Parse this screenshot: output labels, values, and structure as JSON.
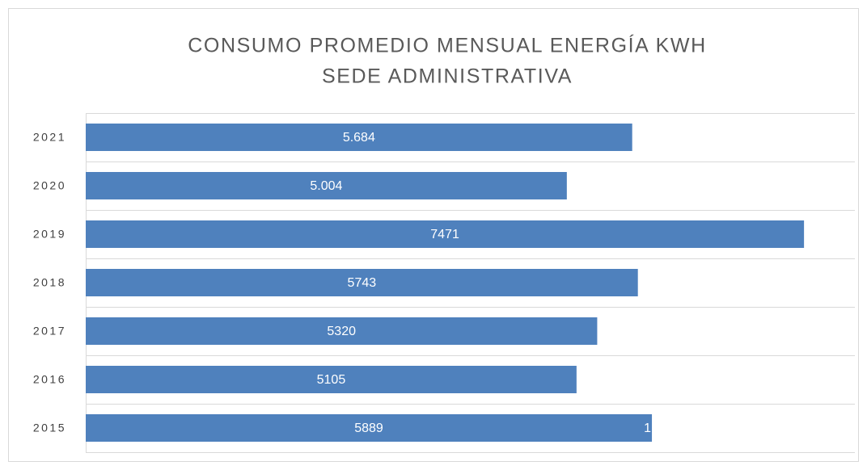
{
  "chart_data": {
    "type": "bar",
    "orientation": "horizontal",
    "title": [
      "CONSUMO PROMEDIO MENSUAL ENERGÍA KWH",
      "SEDE ADMINISTRATIVA"
    ],
    "categories": [
      "2021",
      "2020",
      "2019",
      "2018",
      "2017",
      "2016",
      "2015"
    ],
    "values": [
      5684,
      5004,
      7471,
      5743,
      5320,
      5105,
      5889
    ],
    "value_labels": [
      "5.684",
      "5.004",
      "7471",
      "5743",
      "5320",
      "5105",
      "5889"
    ],
    "annotations": [
      "1"
    ],
    "color": "#4f81bd",
    "xlim": [
      0,
      8000
    ],
    "grid": true
  }
}
